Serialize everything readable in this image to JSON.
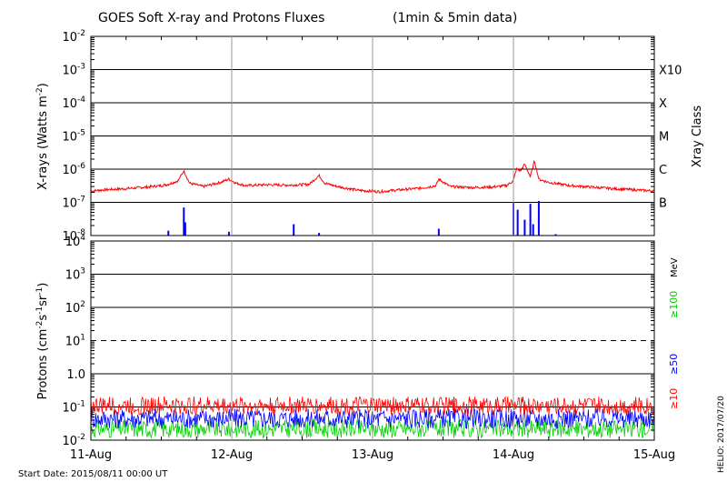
{
  "chart_data": [
    {
      "type": "line",
      "title": "GOES Soft X-ray and Protons Fluxes",
      "subtitle": "(1min & 5min data)",
      "panel": "xray",
      "yscale": "log",
      "ylabel_main": "X-rays (Watts m",
      "ylabel_exp": "-2",
      "ylabel_close": ")",
      "ylim_exp": [
        -8,
        -2
      ],
      "ytick_exps": [
        "-8",
        "-7",
        "-6",
        "-5",
        "-4",
        "-3",
        "-2"
      ],
      "right_axis_title": "Xray Class",
      "class_labels": [
        "B",
        "C",
        "M",
        "X",
        "X10"
      ],
      "x_ticks": [
        "11-Aug",
        "12-Aug",
        "13-Aug",
        "14-Aug",
        "15-Aug"
      ],
      "series": [
        {
          "color": "#ff0000",
          "band": "long",
          "t": [
            0,
            0.1,
            0.25,
            0.4,
            0.5,
            0.55,
            0.62,
            0.66,
            0.7,
            0.8,
            0.92,
            0.98,
            1.03,
            1.1,
            1.25,
            1.4,
            1.55,
            1.62,
            1.66,
            1.75,
            1.9,
            2.05,
            2.2,
            2.35,
            2.45,
            2.47,
            2.55,
            2.7,
            2.85,
            2.95,
            3.0,
            3.02,
            3.05,
            3.08,
            3.12,
            3.15,
            3.18,
            3.25,
            3.4,
            3.55,
            3.7,
            3.85,
            4.0
          ],
          "v": [
            2.2e-07,
            2.4e-07,
            2.6e-07,
            2.9e-07,
            3.2e-07,
            3.5e-07,
            4.5e-07,
            9e-07,
            3.8e-07,
            3e-07,
            4e-07,
            5e-07,
            3.8e-07,
            3.2e-07,
            3.4e-07,
            3.3e-07,
            3.5e-07,
            6.5e-07,
            3.8e-07,
            3e-07,
            2.3e-07,
            2.1e-07,
            2.4e-07,
            2.7e-07,
            3.2e-07,
            5e-07,
            3e-07,
            2.8e-07,
            2.9e-07,
            3.2e-07,
            4.5e-07,
            1e-06,
            9e-07,
            1.4e-06,
            6e-07,
            1.8e-06,
            5e-07,
            4e-07,
            3.2e-07,
            2.9e-07,
            2.6e-07,
            2.4e-07,
            2.2e-07
          ]
        },
        {
          "color": "#0000ff",
          "band": "short",
          "spikes": [
            [
              0.55,
              1.4e-08
            ],
            [
              0.66,
              7e-08
            ],
            [
              0.67,
              2.5e-08
            ],
            [
              0.98,
              1.3e-08
            ],
            [
              1.44,
              2.2e-08
            ],
            [
              1.62,
              1.2e-08
            ],
            [
              2.47,
              1.6e-08
            ],
            [
              3.0,
              1e-07
            ],
            [
              3.03,
              6e-08
            ],
            [
              3.08,
              3e-08
            ],
            [
              3.12,
              9e-08
            ],
            [
              3.14,
              2.2e-08
            ],
            [
              3.18,
              1.1e-07
            ],
            [
              3.3,
              1.1e-08
            ]
          ]
        }
      ]
    },
    {
      "type": "line",
      "panel": "protons",
      "yscale": "log",
      "ylabel_main": "Protons (cm",
      "ylabel_exp1": "-2",
      "ylabel_mid": "s",
      "ylabel_exp2": "-1",
      "ylabel_mid2": "sr",
      "ylabel_exp3": "-1",
      "ylabel_close": ")",
      "ylim_exp": [
        -2,
        4
      ],
      "ytick_labels": [
        {
          "base": "10",
          "exp": "-2"
        },
        {
          "base": "10",
          "exp": "-1"
        },
        {
          "base": "1.0",
          "exp": ""
        },
        {
          "base": "10",
          "exp": "1"
        },
        {
          "base": "10",
          "exp": "2"
        },
        {
          "base": "10",
          "exp": "3"
        },
        {
          "base": "10",
          "exp": "4"
        }
      ],
      "threshold_exp": 1,
      "units_label": "MeV",
      "series": [
        {
          "name": "≥10",
          "color": "#ff0000",
          "level": 0.11,
          "jitter": 0.55
        },
        {
          "name": "≥50",
          "color": "#0000ff",
          "level": 0.045,
          "jitter": 0.6
        },
        {
          "name": "≥100",
          "color": "#00d000",
          "level": 0.022,
          "jitter": 0.55
        }
      ],
      "x_ticks": [
        "11-Aug",
        "12-Aug",
        "13-Aug",
        "14-Aug",
        "15-Aug"
      ]
    }
  ],
  "footer": {
    "start_date": "Start Date: 2015/08/11 00:00 UT",
    "credit": "HELIO: 2017/07/20"
  }
}
